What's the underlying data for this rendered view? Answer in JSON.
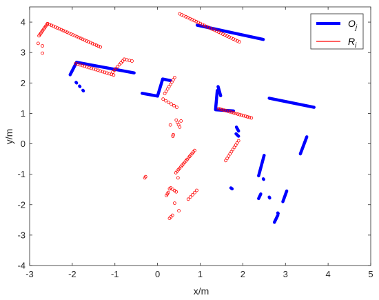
{
  "chart_data": {
    "type": "scatter",
    "xlabel": "x/m",
    "ylabel": "y/m",
    "xlim": [
      -3,
      5
    ],
    "ylim": [
      -4,
      4.5
    ],
    "xticks": [
      "-3",
      "-2",
      "-1",
      "0",
      "1",
      "2",
      "3",
      "4",
      "5"
    ],
    "yticks": [
      "-4",
      "-3",
      "-2",
      "-1",
      "0",
      "1",
      "2",
      "3",
      "4"
    ],
    "grid": false,
    "legend_position": "top-right",
    "series": [
      {
        "name": "O",
        "name_subscript": "j",
        "color": "#0000ff",
        "style": "thick-line",
        "segments": [
          [
            [
              -2.05,
              2.27
            ],
            [
              -1.9,
              2.68
            ],
            [
              -0.55,
              2.33
            ]
          ],
          [
            [
              0.93,
              3.9
            ],
            [
              2.48,
              3.43
            ]
          ],
          [
            [
              -0.36,
              1.66
            ],
            [
              0.0,
              1.57
            ],
            [
              0.12,
              2.13
            ],
            [
              0.3,
              2.08
            ]
          ],
          [
            [
              1.4,
              1.75
            ],
            [
              1.36,
              1.12
            ],
            [
              1.78,
              1.08
            ]
          ],
          [
            [
              1.42,
              1.88
            ],
            [
              1.48,
              1.58
            ]
          ],
          [
            [
              2.62,
              1.5
            ],
            [
              3.67,
              1.2
            ]
          ],
          [
            [
              1.85,
              0.55
            ],
            [
              1.9,
              0.42
            ]
          ],
          [
            [
              1.84,
              0.33
            ],
            [
              1.9,
              0.25
            ]
          ],
          [
            [
              2.37,
              -1.05
            ],
            [
              2.5,
              -0.38
            ]
          ],
          [
            [
              3.35,
              -0.33
            ],
            [
              3.5,
              0.23
            ]
          ],
          [
            [
              2.37,
              -1.8
            ],
            [
              2.42,
              -1.65
            ]
          ],
          [
            [
              2.94,
              -1.9
            ],
            [
              3.03,
              -1.55
            ]
          ],
          [
            [
              2.74,
              -2.58
            ],
            [
              2.82,
              -2.35
            ]
          ],
          [
            [
              1.72,
              -1.45
            ],
            [
              1.75,
              -1.48
            ]
          ],
          [
            [
              2.62,
              -1.75
            ],
            [
              2.63,
              -1.78
            ]
          ],
          [
            [
              2.48,
              -1.15
            ],
            [
              2.49,
              -1.17
            ]
          ],
          [
            [
              -1.9,
              2.0
            ],
            [
              -1.91,
              2.02
            ]
          ],
          [
            [
              -1.82,
              1.88
            ],
            [
              -1.83,
              1.9
            ]
          ],
          [
            [
              -1.74,
              1.74
            ],
            [
              -1.75,
              1.76
            ]
          ],
          [
            [
              2.82,
              -2.27
            ],
            [
              2.83,
              -2.29
            ]
          ]
        ]
      },
      {
        "name": "R",
        "name_subscript": "i",
        "color": "#ff0000",
        "style": "open-circles",
        "runs": [
          [
            [
              -2.78,
              3.55
            ],
            [
              -2.58,
              3.95
            ],
            10
          ],
          [
            [
              -2.58,
              3.95
            ],
            [
              -1.34,
              3.18
            ],
            28
          ],
          [
            [
              -1.92,
              2.64
            ],
            [
              -1.03,
              2.26
            ],
            18
          ],
          [
            [
              -1.05,
              2.36
            ],
            [
              -0.78,
              2.78
            ],
            8
          ],
          [
            [
              -0.78,
              2.78
            ],
            [
              -0.6,
              2.72
            ],
            4
          ],
          [
            [
              0.52,
              4.27
            ],
            [
              1.92,
              3.35
            ],
            30
          ],
          [
            [
              0.13,
              1.47
            ],
            [
              0.45,
              1.2
            ],
            6
          ],
          [
            [
              0.17,
              1.65
            ],
            [
              0.4,
              2.18
            ],
            8
          ],
          [
            [
              1.43,
              1.16
            ],
            [
              2.2,
              0.85
            ],
            18
          ],
          [
            [
              0.43,
              -0.95
            ],
            [
              0.87,
              -0.22
            ],
            16
          ],
          [
            [
              1.6,
              -0.55
            ],
            [
              1.9,
              0.1
            ],
            10
          ],
          [
            [
              0.31,
              -1.45
            ],
            [
              0.44,
              -1.58
            ],
            4
          ],
          [
            [
              0.21,
              -1.7
            ],
            [
              0.25,
              -1.6
            ],
            3
          ],
          [
            [
              0.72,
              -1.82
            ],
            [
              0.92,
              -1.53
            ],
            5
          ],
          [
            [
              0.44,
              0.78
            ],
            [
              0.52,
              0.55
            ],
            4
          ],
          [
            [
              0.28,
              -2.45
            ],
            [
              0.35,
              -2.35
            ],
            3
          ]
        ],
        "points": [
          [
            -2.8,
            3.3
          ],
          [
            -2.7,
            3.22
          ],
          [
            -2.7,
            2.98
          ],
          [
            -0.3,
            -1.12
          ],
          [
            -0.28,
            -1.08
          ],
          [
            0.3,
            0.62
          ],
          [
            0.48,
            -1.12
          ],
          [
            0.5,
            -2.2
          ],
          [
            0.4,
            -1.95
          ],
          [
            0.36,
            0.25
          ],
          [
            0.37,
            0.3
          ],
          [
            0.55,
            0.75
          ],
          [
            0.28,
            -1.48
          ]
        ]
      }
    ]
  }
}
